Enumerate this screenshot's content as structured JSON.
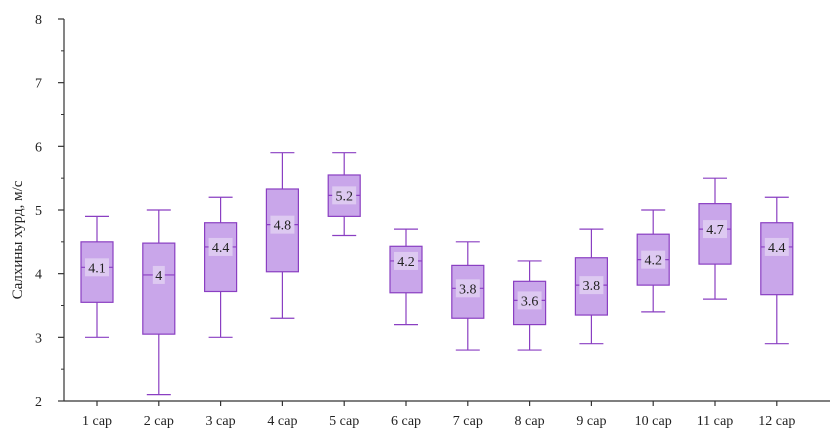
{
  "chart_data": {
    "type": "box",
    "ylabel": "Салхины хурд, м/с",
    "xlabel": "",
    "ylim": [
      2,
      8
    ],
    "yticks": [
      "2",
      "3",
      "4",
      "5",
      "6",
      "7",
      "8"
    ],
    "categories": [
      "1 сар",
      "2 сар",
      "3 сар",
      "4 сар",
      "5 сар",
      "6 сар",
      "7 сар",
      "8 сар",
      "9 сар",
      "10 сар",
      "11 сар",
      "12 сар"
    ],
    "boxes": [
      {
        "whisker_low": 3.0,
        "q1": 3.55,
        "median": 4.1,
        "q3": 4.5,
        "whisker_high": 4.9,
        "label": "4.1"
      },
      {
        "whisker_low": 2.1,
        "q1": 3.05,
        "median": 3.98,
        "q3": 4.48,
        "whisker_high": 5.0,
        "label": "4"
      },
      {
        "whisker_low": 3.0,
        "q1": 3.72,
        "median": 4.42,
        "q3": 4.8,
        "whisker_high": 5.2,
        "label": "4.4"
      },
      {
        "whisker_low": 3.3,
        "q1": 4.03,
        "median": 4.77,
        "q3": 5.33,
        "whisker_high": 5.9,
        "label": "4.8"
      },
      {
        "whisker_low": 4.6,
        "q1": 4.9,
        "median": 5.23,
        "q3": 5.55,
        "whisker_high": 5.9,
        "label": "5.2"
      },
      {
        "whisker_low": 3.2,
        "q1": 3.7,
        "median": 4.2,
        "q3": 4.43,
        "whisker_high": 4.7,
        "label": "4.2"
      },
      {
        "whisker_low": 2.8,
        "q1": 3.3,
        "median": 3.77,
        "q3": 4.13,
        "whisker_high": 4.5,
        "label": "3.8"
      },
      {
        "whisker_low": 2.8,
        "q1": 3.2,
        "median": 3.58,
        "q3": 3.88,
        "whisker_high": 4.2,
        "label": "3.6"
      },
      {
        "whisker_low": 2.9,
        "q1": 3.35,
        "median": 3.82,
        "q3": 4.25,
        "whisker_high": 4.7,
        "label": "3.8"
      },
      {
        "whisker_low": 3.4,
        "q1": 3.82,
        "median": 4.22,
        "q3": 4.62,
        "whisker_high": 5.0,
        "label": "4.2"
      },
      {
        "whisker_low": 3.6,
        "q1": 4.15,
        "median": 4.7,
        "q3": 5.1,
        "whisker_high": 5.5,
        "label": "4.7"
      },
      {
        "whisker_low": 2.9,
        "q1": 3.67,
        "median": 4.42,
        "q3": 4.8,
        "whisker_high": 5.2,
        "label": "4.4"
      }
    ],
    "grid": false,
    "legend": "none",
    "colors": {
      "box_fill": "#c9a6ea",
      "box_stroke": "#8a3fc2",
      "axis": "#333333",
      "label_bg": "#ddc9f1"
    }
  }
}
